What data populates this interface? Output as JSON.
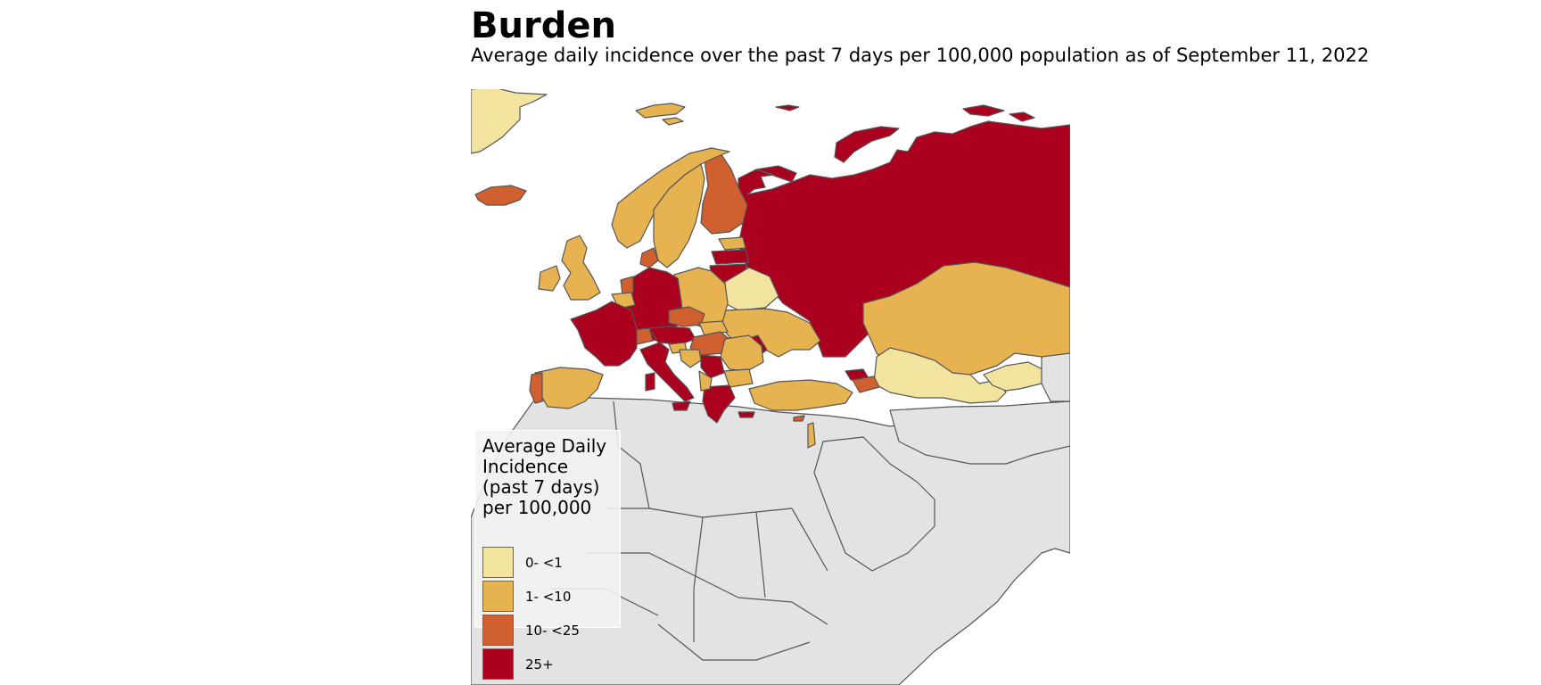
{
  "header": {
    "title": "Burden",
    "subtitle": "Average daily incidence over the past 7 days per 100,000 population as of September 11, 2022"
  },
  "legend": {
    "title": "Average Daily Incidence (past 7 days) per 100,000",
    "items": [
      {
        "label": "0- <1",
        "color": "#f2e49e"
      },
      {
        "label": "1- <10",
        "color": "#e6b350"
      },
      {
        "label": "10- <25",
        "color": "#d16030"
      },
      {
        "label": "25+",
        "color": "#ab001e"
      }
    ]
  },
  "colors": {
    "no_data": "#e3e3e3",
    "border": "#555555",
    "ocean": "#ffffff"
  }
}
